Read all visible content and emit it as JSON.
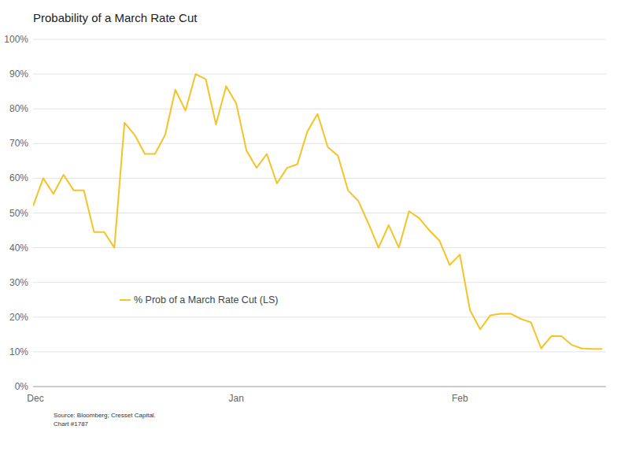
{
  "chart_data": {
    "type": "line",
    "title": "Probability of a March Rate Cut",
    "source": "Source: Bloomberg; Cresset Capital.",
    "note": "Chart #1787",
    "categories": [
      "Dec",
      null,
      null,
      null,
      null,
      null,
      null,
      null,
      null,
      null,
      null,
      null,
      null,
      null,
      null,
      null,
      null,
      null,
      null,
      null,
      "Jan",
      null,
      null,
      null,
      null,
      null,
      null,
      null,
      null,
      null,
      null,
      null,
      null,
      null,
      null,
      null,
      null,
      null,
      null,
      null,
      null,
      null,
      "Feb",
      null,
      null,
      null,
      null,
      null,
      null,
      null,
      null,
      null,
      null,
      null,
      null,
      null,
      null
    ],
    "series": [
      {
        "name": "% Prob of a March Rate Cut (LS)",
        "color": "#f5c325",
        "values": [
          52,
          60,
          55.5,
          61,
          56.5,
          56.5,
          44.5,
          44.5,
          40,
          76,
          72.5,
          67,
          67,
          72.5,
          85.5,
          79.5,
          90,
          88.5,
          75.5,
          86.5,
          81.5,
          68,
          63,
          67,
          58.5,
          63,
          64,
          73.5,
          78.5,
          69,
          66.5,
          56.5,
          53.5,
          47,
          40,
          46.5,
          40,
          50.5,
          48.5,
          45,
          42,
          35,
          38,
          22,
          16.5,
          20.5,
          21,
          21,
          19.5,
          18.5,
          11,
          14.5,
          14.5,
          12,
          11,
          10.8,
          10.8
        ]
      }
    ],
    "ylim": [
      0,
      100
    ],
    "yticks": [
      {
        "value": 0,
        "label": "0%"
      },
      {
        "value": 10,
        "label": "10%"
      },
      {
        "value": 20,
        "label": "20%"
      },
      {
        "value": 30,
        "label": "30%"
      },
      {
        "value": 40,
        "label": "40%"
      },
      {
        "value": 50,
        "label": "50%"
      },
      {
        "value": 60,
        "label": "60%"
      },
      {
        "value": 70,
        "label": "70%"
      },
      {
        "value": 80,
        "label": "80%"
      },
      {
        "value": 90,
        "label": "90%"
      },
      {
        "value": 100,
        "label": "100%"
      }
    ],
    "grid": true,
    "legend": "left"
  }
}
